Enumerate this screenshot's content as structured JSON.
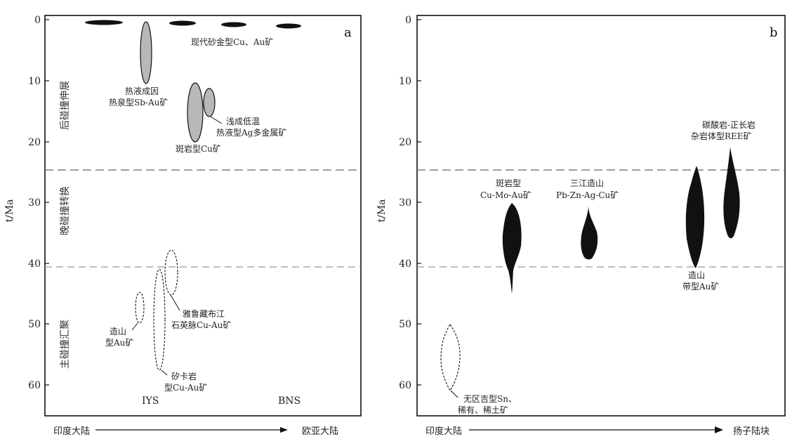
{
  "panels": [
    {
      "letter": "a",
      "y_axis_title": "t/Ma",
      "y_ticks": [
        "0",
        "10",
        "20",
        "30",
        "40",
        "50",
        "60"
      ],
      "periods": [
        "后碰撞伸展",
        "晚碰撞转换",
        "主碰撞汇聚"
      ],
      "bottom_left": "IYS",
      "bottom_right": "BNS",
      "axis_left_text": "印度大陆",
      "axis_right_text": "欧亚大陆",
      "labels": {
        "modern_placer": "现代砂金型Cu、Au矿",
        "hot_spring_1": "热液成因",
        "hot_spring_2": "热泉型Sb-Au矿",
        "porphyry_cu": "斑岩型Cu矿",
        "epithermal_1": "浅成低温",
        "epithermal_2": "热液型Ag多金属矿",
        "au_vein_1": "造山",
        "au_vein_2": "型Au矿",
        "yarlung_1": "雅鲁藏布江",
        "yarlung_2": "石英脉Cu-Au矿",
        "skarn_1": "矽卡岩",
        "skarn_2": "型Cu-Au矿"
      }
    },
    {
      "letter": "b",
      "y_axis_title": "t/Ma",
      "y_ticks": [
        "0",
        "10",
        "20",
        "30",
        "40",
        "50",
        "60"
      ],
      "axis_left_text": "印度大陆",
      "axis_right_text": "扬子陆块",
      "labels": {
        "cu_mo_au_1": "斑岩型",
        "cu_mo_au_2": "Cu-Mo-Au矿",
        "pb_zn_1": "三江造山",
        "pb_zn_2": "Pb-Zn-Ag-Cu矿",
        "ree_1": "碳酸岩-正长岩",
        "ree_2": "杂岩体型REE矿",
        "au_1": "造山",
        "au_2": "带型Au矿",
        "sn_1": "无区吉型Sn、",
        "sn_2": "稀有、稀土矿"
      }
    }
  ]
}
